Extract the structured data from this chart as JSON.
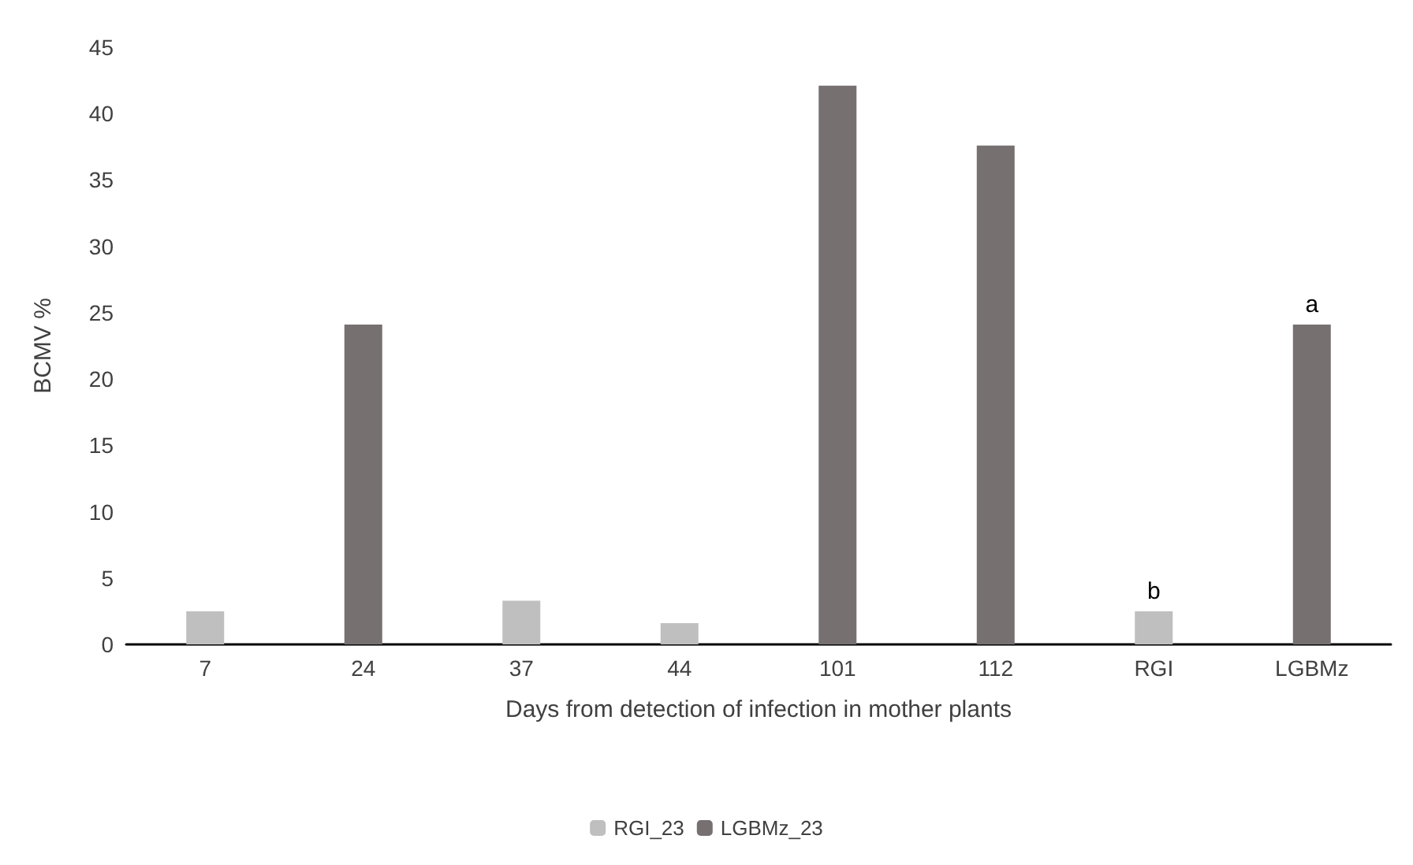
{
  "chart_data": {
    "type": "bar",
    "xlabel": "Days from detection of infection in mother plants",
    "ylabel": "BCMV %",
    "categories": [
      "7",
      "24",
      "37",
      "44",
      "101",
      "112",
      "RGI",
      "LGBMz"
    ],
    "series": [
      {
        "name": "RGI_23",
        "color": "#bfbfbf",
        "values": [
          2.5,
          null,
          3.3,
          1.6,
          null,
          null,
          2.5,
          null
        ]
      },
      {
        "name": "LGBMz_23",
        "color": "#767070",
        "values": [
          null,
          24.1,
          null,
          null,
          42.1,
          37.6,
          null,
          24.1
        ]
      }
    ],
    "annotations": [
      {
        "text": "b",
        "x": "RGI",
        "y": 2.5
      },
      {
        "text": "a",
        "x": "LGBMz",
        "y": 24.1
      }
    ],
    "ylim": [
      0,
      45
    ],
    "yticks": [
      0,
      5,
      10,
      15,
      20,
      25,
      30,
      35,
      40,
      45
    ],
    "grid": false,
    "legend": "bottom"
  }
}
